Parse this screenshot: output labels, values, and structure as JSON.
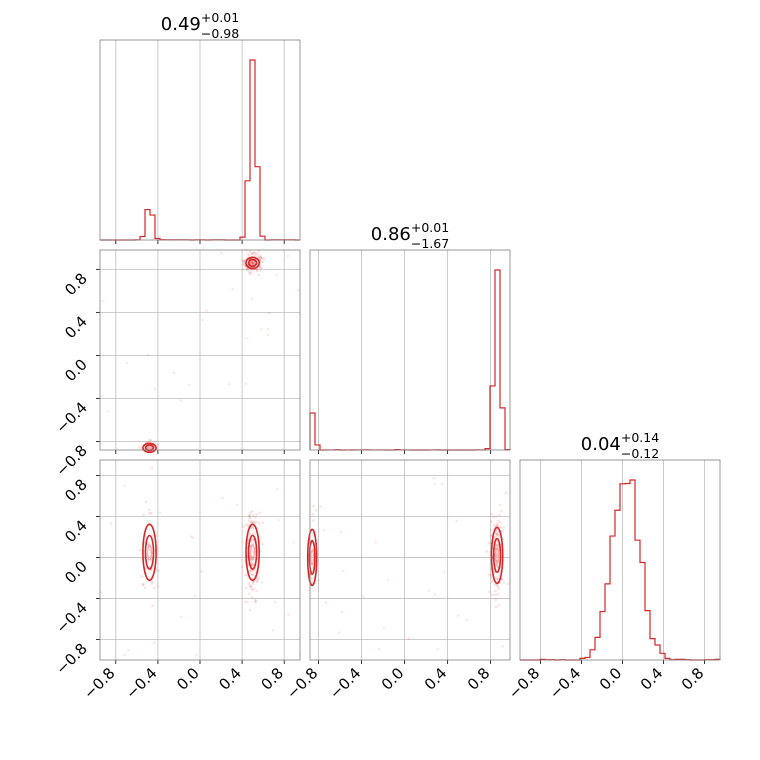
{
  "chart_data": {
    "type": "corner",
    "color": "#d62728",
    "ticks": [
      -0.8,
      -0.4,
      0.0,
      0.4,
      0.8
    ],
    "tick_labels": [
      "−0.8",
      "−0.4",
      "0.0",
      "0.4",
      "0.8"
    ],
    "parameters": [
      {
        "range": [
          -0.95,
          0.95
        ],
        "title": {
          "median": "0.49",
          "upper": "+0.01",
          "lower": "−0.98"
        },
        "modes": [
          {
            "center": -0.48,
            "width": 0.03,
            "weight": 0.15
          },
          {
            "center": 0.5,
            "width": 0.03,
            "weight": 0.85
          }
        ],
        "histogram_peaks": [
          0.14,
          0.9
        ]
      },
      {
        "range": [
          -0.88,
          0.98
        ],
        "title": {
          "median": "0.86",
          "upper": "+0.01",
          "lower": "−1.67"
        },
        "modes": [
          {
            "center": -0.86,
            "width": 0.02,
            "weight": 0.14
          },
          {
            "center": 0.86,
            "width": 0.025,
            "weight": 0.86
          }
        ],
        "histogram_peaks": [
          0.19,
          0.9
        ]
      },
      {
        "range": [
          -1.0,
          0.95
        ],
        "title": {
          "median": "0.04",
          "upper": "+0.14",
          "lower": "−0.12"
        },
        "modes": [
          {
            "center": 0.03,
            "width": 0.13,
            "weight": 1.0
          }
        ],
        "histogram_peaks": [
          0.9
        ]
      }
    ],
    "panels": [
      {
        "row": 1,
        "col": 0,
        "modes": [
          {
            "x": 0.5,
            "y": 0.86
          },
          {
            "x": -0.48,
            "y": -0.86
          }
        ]
      },
      {
        "row": 2,
        "col": 0,
        "modes": [
          {
            "x": 0.5,
            "y": 0.05
          },
          {
            "x": -0.48,
            "y": 0.05
          }
        ]
      },
      {
        "row": 2,
        "col": 1,
        "modes": [
          {
            "x": 0.86,
            "y": 0.02
          },
          {
            "x": -0.86,
            "y": 0.0
          }
        ]
      }
    ]
  }
}
